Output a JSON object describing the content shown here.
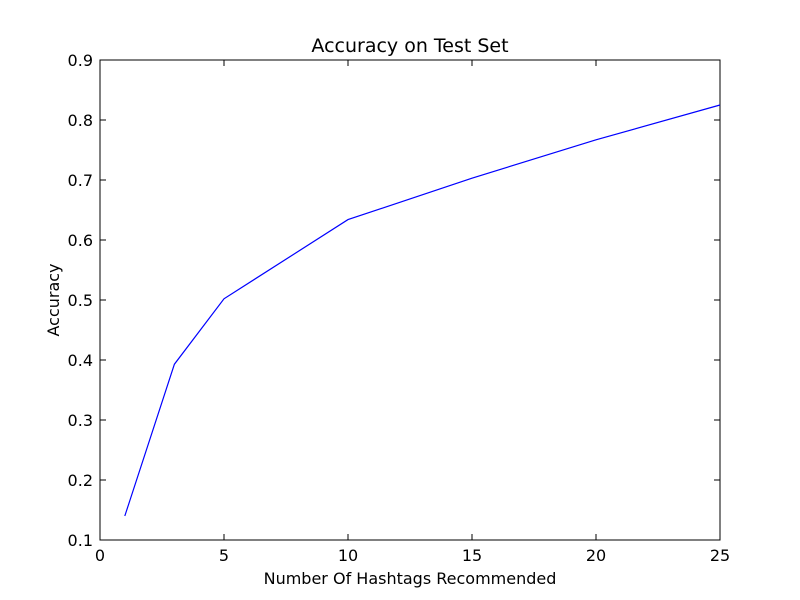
{
  "chart_data": {
    "type": "line",
    "title": "Accuracy on Test Set",
    "xlabel": "Number Of Hashtags Recommended",
    "ylabel": "Accuracy",
    "xlim": [
      0,
      25
    ],
    "ylim": [
      0.1,
      0.9
    ],
    "xticks": [
      0,
      5,
      10,
      15,
      20,
      25
    ],
    "yticks": [
      0.1,
      0.2,
      0.3,
      0.4,
      0.5,
      0.6,
      0.7,
      0.8,
      0.9
    ],
    "xtick_labels": [
      "0",
      "5",
      "10",
      "15",
      "20",
      "25"
    ],
    "ytick_labels": [
      "0.1",
      "0.2",
      "0.3",
      "0.4",
      "0.5",
      "0.6",
      "0.7",
      "0.8",
      "0.9"
    ],
    "grid": false,
    "legend": "none",
    "series": [
      {
        "color": "#0000ff",
        "x": [
          1,
          3,
          5,
          10,
          15,
          20,
          25
        ],
        "y": [
          0.14,
          0.393,
          0.502,
          0.634,
          0.703,
          0.767,
          0.825
        ]
      }
    ]
  }
}
